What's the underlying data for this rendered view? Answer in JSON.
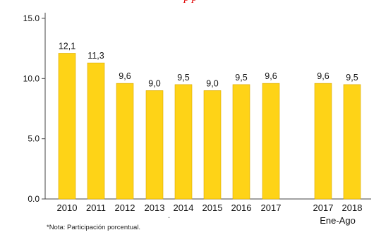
{
  "header_fragment": "p                              p",
  "chart_data": {
    "type": "bar",
    "categories": [
      "2010",
      "2011",
      "2012",
      "2013",
      "2014",
      "2015",
      "2016",
      "2017",
      "2017",
      "2018"
    ],
    "values": [
      12.1,
      11.3,
      9.6,
      9.0,
      9.5,
      9.0,
      9.5,
      9.6,
      9.6,
      9.5
    ],
    "data_labels": [
      "12,1",
      "11,3",
      "9,6",
      "9,0",
      "9,5",
      "9,0",
      "9,5",
      "9,6",
      "9,6",
      "9,5"
    ],
    "group_label": "Ene-Ago",
    "ylim": [
      0,
      15
    ],
    "yticks": [
      0,
      5,
      10,
      15
    ],
    "ytick_labels": [
      "0.0",
      "5.0",
      "10.0",
      "15.0"
    ],
    "grid": false,
    "bar_color": "#fed317",
    "bar_edge_color": "#d9a800"
  },
  "footnote": "*Nota: Participación porcentual.",
  "stray_mark": "."
}
